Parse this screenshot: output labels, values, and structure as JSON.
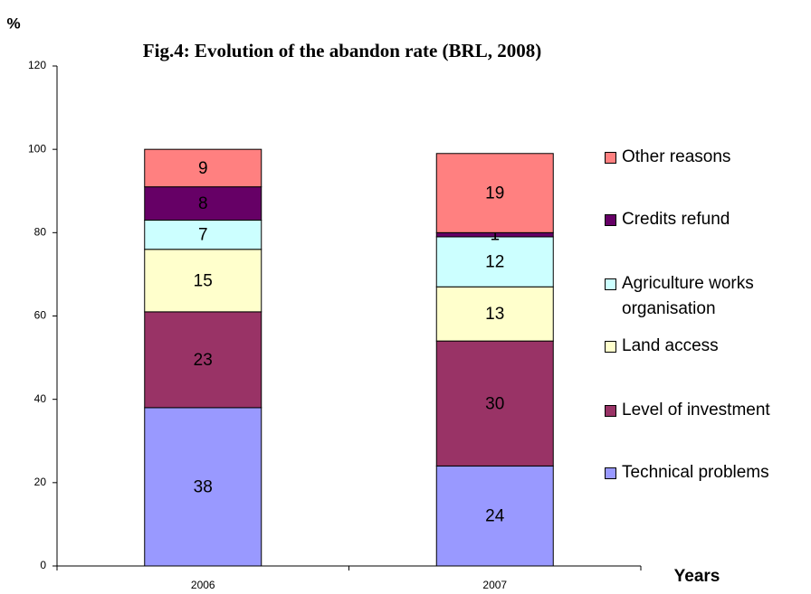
{
  "chart_data": {
    "type": "stacked-bar",
    "title": "Fig.4: Evolution of the abandon rate (BRL, 2008)",
    "y_label": "%",
    "x_label": "Years",
    "categories": [
      "2006",
      "2007"
    ],
    "series": [
      {
        "name": "Technical problems",
        "color": "#9999ff",
        "values": [
          38,
          24
        ]
      },
      {
        "name": "Level of investment",
        "color": "#993366",
        "values": [
          23,
          30
        ]
      },
      {
        "name": "Land access",
        "color": "#ffffcc",
        "values": [
          15,
          13
        ]
      },
      {
        "name": "Agriculture works organisation",
        "color": "#ccffff",
        "values": [
          7,
          12
        ]
      },
      {
        "name": "Credits refund",
        "color": "#660066",
        "values": [
          8,
          1
        ]
      },
      {
        "name": "Other reasons",
        "color": "#ff8080",
        "values": [
          9,
          19
        ]
      }
    ],
    "ylim": [
      0,
      120
    ],
    "yticks": [
      0,
      20,
      40,
      60,
      80,
      100,
      120
    ],
    "legend": "right"
  }
}
